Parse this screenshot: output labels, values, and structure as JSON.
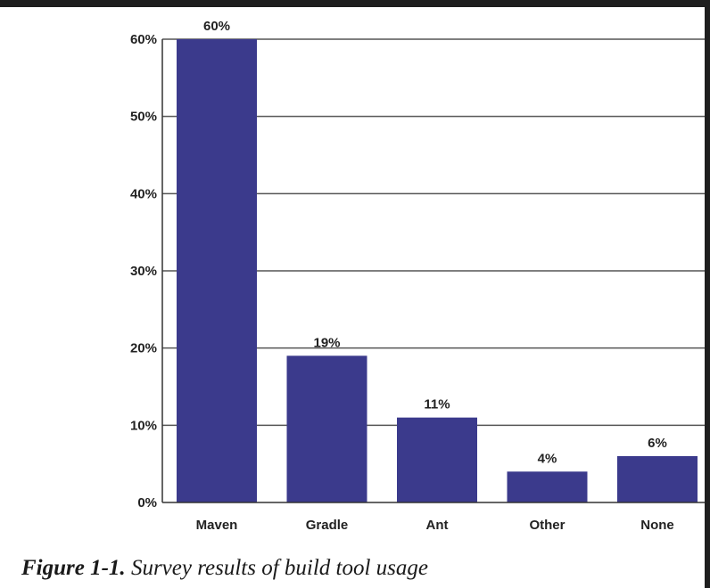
{
  "chart_data": {
    "type": "bar",
    "categories": [
      "Maven",
      "Gradle",
      "Ant",
      "Other",
      "None"
    ],
    "values": [
      60,
      19,
      11,
      4,
      6
    ],
    "value_labels": [
      "60%",
      "19%",
      "11%",
      "4%",
      "6%"
    ],
    "title": "",
    "xlabel": "",
    "ylabel": "",
    "ylim": [
      0,
      60
    ],
    "y_ticks": [
      0,
      10,
      20,
      30,
      40,
      50,
      60
    ],
    "y_tick_labels": [
      "0%",
      "10%",
      "20%",
      "30%",
      "40%",
      "50%",
      "60%"
    ],
    "grid": true,
    "legend": "none",
    "bar_color": "#3b3a8c",
    "grid_color": "#555555"
  },
  "caption": {
    "label": "Figure 1-1.",
    "text": "Survey results of build tool usage"
  }
}
